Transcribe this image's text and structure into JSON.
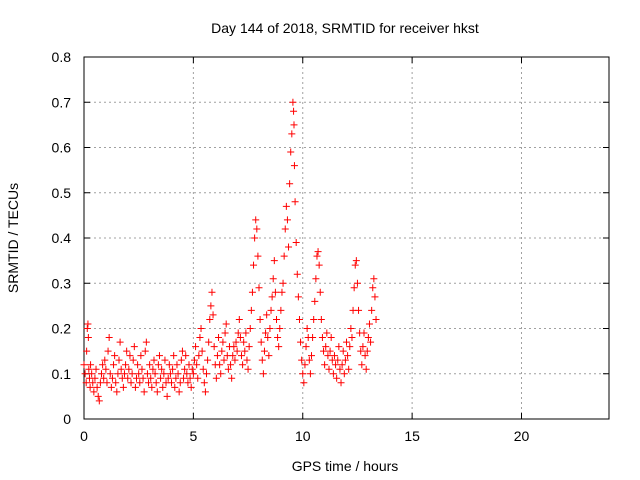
{
  "chart_data": {
    "type": "scatter",
    "title": "Day 144 of 2018, SRMTID for receiver hkst",
    "xlabel": "GPS time / hours",
    "ylabel": "SRMTID / TECUs",
    "xlim": [
      0,
      24
    ],
    "ylim": [
      0,
      0.8
    ],
    "xticks": [
      0,
      5,
      10,
      15,
      20
    ],
    "yticks": [
      0,
      0.1,
      0.2,
      0.3,
      0.4,
      0.5,
      0.6,
      0.7,
      0.8
    ],
    "xtick_labels": [
      "0",
      "5",
      "10",
      "15",
      "20"
    ],
    "ytick_labels": [
      "0",
      "0.1",
      "0.2",
      "0.3",
      "0.4",
      "0.5",
      "0.6",
      "0.7",
      "0.8"
    ],
    "grid": true,
    "marker": "+",
    "color": "#ff0000",
    "series": [
      {
        "name": "hkst",
        "points": [
          [
            0.0,
            0.12
          ],
          [
            0.05,
            0.1
          ],
          [
            0.1,
            0.08
          ],
          [
            0.12,
            0.15
          ],
          [
            0.15,
            0.2
          ],
          [
            0.18,
            0.21
          ],
          [
            0.2,
            0.18
          ],
          [
            0.22,
            0.11
          ],
          [
            0.25,
            0.09
          ],
          [
            0.28,
            0.07
          ],
          [
            0.3,
            0.12
          ],
          [
            0.35,
            0.1
          ],
          [
            0.4,
            0.08
          ],
          [
            0.45,
            0.06
          ],
          [
            0.5,
            0.09
          ],
          [
            0.55,
            0.11
          ],
          [
            0.6,
            0.07
          ],
          [
            0.65,
            0.05
          ],
          [
            0.7,
            0.04
          ],
          [
            0.75,
            0.08
          ],
          [
            0.8,
            0.1
          ],
          [
            0.85,
            0.12
          ],
          [
            0.9,
            0.09
          ],
          [
            0.95,
            0.13
          ],
          [
            1.0,
            0.11
          ],
          [
            1.05,
            0.08
          ],
          [
            1.1,
            0.15
          ],
          [
            1.15,
            0.18
          ],
          [
            1.2,
            0.1
          ],
          [
            1.25,
            0.07
          ],
          [
            1.3,
            0.09
          ],
          [
            1.35,
            0.12
          ],
          [
            1.4,
            0.14
          ],
          [
            1.45,
            0.08
          ],
          [
            1.5,
            0.06
          ],
          [
            1.55,
            0.1
          ],
          [
            1.6,
            0.13
          ],
          [
            1.65,
            0.17
          ],
          [
            1.7,
            0.11
          ],
          [
            1.75,
            0.09
          ],
          [
            1.8,
            0.07
          ],
          [
            1.85,
            0.1
          ],
          [
            1.9,
            0.12
          ],
          [
            1.95,
            0.15
          ],
          [
            2.0,
            0.09
          ],
          [
            2.05,
            0.11
          ],
          [
            2.1,
            0.14
          ],
          [
            2.15,
            0.08
          ],
          [
            2.2,
            0.1
          ],
          [
            2.25,
            0.13
          ],
          [
            2.3,
            0.16
          ],
          [
            2.35,
            0.07
          ],
          [
            2.4,
            0.09
          ],
          [
            2.45,
            0.12
          ],
          [
            2.5,
            0.1
          ],
          [
            2.55,
            0.08
          ],
          [
            2.6,
            0.14
          ],
          [
            2.65,
            0.11
          ],
          [
            2.7,
            0.09
          ],
          [
            2.75,
            0.06
          ],
          [
            2.8,
            0.15
          ],
          [
            2.85,
            0.17
          ],
          [
            2.9,
            0.1
          ],
          [
            2.95,
            0.08
          ],
          [
            3.0,
            0.12
          ],
          [
            3.05,
            0.09
          ],
          [
            3.1,
            0.07
          ],
          [
            3.15,
            0.11
          ],
          [
            3.2,
            0.13
          ],
          [
            3.25,
            0.1
          ],
          [
            3.3,
            0.08
          ],
          [
            3.35,
            0.06
          ],
          [
            3.4,
            0.12
          ],
          [
            3.45,
            0.14
          ],
          [
            3.5,
            0.09
          ],
          [
            3.55,
            0.11
          ],
          [
            3.6,
            0.07
          ],
          [
            3.65,
            0.1
          ],
          [
            3.7,
            0.13
          ],
          [
            3.75,
            0.08
          ],
          [
            3.8,
            0.05
          ],
          [
            3.85,
            0.09
          ],
          [
            3.9,
            0.12
          ],
          [
            3.95,
            0.1
          ],
          [
            4.0,
            0.08
          ],
          [
            4.05,
            0.11
          ],
          [
            4.1,
            0.14
          ],
          [
            4.15,
            0.07
          ],
          [
            4.2,
            0.09
          ],
          [
            4.25,
            0.12
          ],
          [
            4.3,
            0.1
          ],
          [
            4.35,
            0.06
          ],
          [
            4.4,
            0.08
          ],
          [
            4.45,
            0.13
          ],
          [
            4.5,
            0.15
          ],
          [
            4.55,
            0.09
          ],
          [
            4.6,
            0.11
          ],
          [
            4.65,
            0.14
          ],
          [
            4.7,
            0.1
          ],
          [
            4.75,
            0.08
          ],
          [
            4.8,
            0.12
          ],
          [
            4.85,
            0.09
          ],
          [
            4.9,
            0.07
          ],
          [
            4.95,
            0.11
          ],
          [
            5.0,
            0.1
          ],
          [
            5.05,
            0.13
          ],
          [
            5.1,
            0.16
          ],
          [
            5.15,
            0.12
          ],
          [
            5.2,
            0.09
          ],
          [
            5.25,
            0.14
          ],
          [
            5.3,
            0.18
          ],
          [
            5.35,
            0.2
          ],
          [
            5.4,
            0.15
          ],
          [
            5.45,
            0.11
          ],
          [
            5.5,
            0.08
          ],
          [
            5.55,
            0.06
          ],
          [
            5.6,
            0.1
          ],
          [
            5.65,
            0.13
          ],
          [
            5.7,
            0.17
          ],
          [
            5.75,
            0.22
          ],
          [
            5.8,
            0.25
          ],
          [
            5.85,
            0.28
          ],
          [
            5.9,
            0.23
          ],
          [
            5.95,
            0.16
          ],
          [
            6.0,
            0.12
          ],
          [
            6.05,
            0.09
          ],
          [
            6.1,
            0.14
          ],
          [
            6.15,
            0.18
          ],
          [
            6.2,
            0.12
          ],
          [
            6.25,
            0.1
          ],
          [
            6.3,
            0.15
          ],
          [
            6.35,
            0.17
          ],
          [
            6.4,
            0.13
          ],
          [
            6.45,
            0.19
          ],
          [
            6.5,
            0.21
          ],
          [
            6.55,
            0.14
          ],
          [
            6.6,
            0.11
          ],
          [
            6.65,
            0.16
          ],
          [
            6.7,
            0.12
          ],
          [
            6.75,
            0.09
          ],
          [
            6.8,
            0.14
          ],
          [
            6.85,
            0.16
          ],
          [
            6.9,
            0.13
          ],
          [
            6.95,
            0.17
          ],
          [
            7.0,
            0.15
          ],
          [
            7.05,
            0.19
          ],
          [
            7.1,
            0.22
          ],
          [
            7.15,
            0.18
          ],
          [
            7.2,
            0.14
          ],
          [
            7.25,
            0.12
          ],
          [
            7.3,
            0.17
          ],
          [
            7.35,
            0.15
          ],
          [
            7.4,
            0.19
          ],
          [
            7.45,
            0.13
          ],
          [
            7.5,
            0.11
          ],
          [
            7.55,
            0.16
          ],
          [
            7.6,
            0.2
          ],
          [
            7.65,
            0.24
          ],
          [
            7.7,
            0.28
          ],
          [
            7.75,
            0.34
          ],
          [
            7.8,
            0.4
          ],
          [
            7.85,
            0.44
          ],
          [
            7.9,
            0.42
          ],
          [
            7.95,
            0.36
          ],
          [
            8.0,
            0.29
          ],
          [
            8.05,
            0.22
          ],
          [
            8.1,
            0.17
          ],
          [
            8.15,
            0.13
          ],
          [
            8.2,
            0.1
          ],
          [
            8.25,
            0.15
          ],
          [
            8.3,
            0.19
          ],
          [
            8.35,
            0.23
          ],
          [
            8.4,
            0.18
          ],
          [
            8.45,
            0.14
          ],
          [
            8.5,
            0.2
          ],
          [
            8.55,
            0.24
          ],
          [
            8.6,
            0.27
          ],
          [
            8.65,
            0.31
          ],
          [
            8.7,
            0.35
          ],
          [
            8.75,
            0.28
          ],
          [
            8.8,
            0.22
          ],
          [
            8.85,
            0.18
          ],
          [
            8.9,
            0.16
          ],
          [
            8.95,
            0.2
          ],
          [
            9.0,
            0.24
          ],
          [
            9.05,
            0.28
          ],
          [
            9.1,
            0.3
          ],
          [
            9.15,
            0.36
          ],
          [
            9.2,
            0.42
          ],
          [
            9.25,
            0.47
          ],
          [
            9.3,
            0.44
          ],
          [
            9.35,
            0.38
          ],
          [
            9.4,
            0.52
          ],
          [
            9.45,
            0.59
          ],
          [
            9.5,
            0.63
          ],
          [
            9.55,
            0.7
          ],
          [
            9.58,
            0.68
          ],
          [
            9.6,
            0.65
          ],
          [
            9.62,
            0.56
          ],
          [
            9.65,
            0.48
          ],
          [
            9.7,
            0.39
          ],
          [
            9.75,
            0.32
          ],
          [
            9.8,
            0.27
          ],
          [
            9.85,
            0.22
          ],
          [
            9.9,
            0.17
          ],
          [
            9.95,
            0.13
          ],
          [
            10.0,
            0.1
          ],
          [
            10.05,
            0.08
          ],
          [
            10.1,
            0.12
          ],
          [
            10.15,
            0.16
          ],
          [
            10.2,
            0.2
          ],
          [
            10.25,
            0.18
          ],
          [
            10.3,
            0.13
          ],
          [
            10.35,
            0.1
          ],
          [
            10.4,
            0.14
          ],
          [
            10.45,
            0.18
          ],
          [
            10.5,
            0.22
          ],
          [
            10.55,
            0.26
          ],
          [
            10.6,
            0.31
          ],
          [
            10.65,
            0.36
          ],
          [
            10.7,
            0.37
          ],
          [
            10.75,
            0.34
          ],
          [
            10.8,
            0.28
          ],
          [
            10.85,
            0.22
          ],
          [
            10.9,
            0.18
          ],
          [
            10.95,
            0.15
          ],
          [
            11.0,
            0.12
          ],
          [
            11.05,
            0.16
          ],
          [
            11.1,
            0.19
          ],
          [
            11.15,
            0.14
          ],
          [
            11.2,
            0.11
          ],
          [
            11.25,
            0.15
          ],
          [
            11.3,
            0.18
          ],
          [
            11.35,
            0.13
          ],
          [
            11.4,
            0.1
          ],
          [
            11.45,
            0.14
          ],
          [
            11.5,
            0.12
          ],
          [
            11.55,
            0.09
          ],
          [
            11.6,
            0.13
          ],
          [
            11.65,
            0.16
          ],
          [
            11.7,
            0.11
          ],
          [
            11.75,
            0.08
          ],
          [
            11.8,
            0.12
          ],
          [
            11.85,
            0.15
          ],
          [
            11.9,
            0.1
          ],
          [
            11.95,
            0.13
          ],
          [
            12.0,
            0.17
          ],
          [
            12.05,
            0.14
          ],
          [
            12.1,
            0.11
          ],
          [
            12.15,
            0.16
          ],
          [
            12.2,
            0.2
          ],
          [
            12.25,
            0.18
          ],
          [
            12.3,
            0.24
          ],
          [
            12.35,
            0.29
          ],
          [
            12.4,
            0.34
          ],
          [
            12.45,
            0.35
          ],
          [
            12.5,
            0.3
          ],
          [
            12.55,
            0.24
          ],
          [
            12.6,
            0.19
          ],
          [
            12.65,
            0.15
          ],
          [
            12.7,
            0.12
          ],
          [
            12.75,
            0.16
          ],
          [
            12.8,
            0.19
          ],
          [
            12.85,
            0.14
          ],
          [
            12.9,
            0.11
          ],
          [
            12.95,
            0.15
          ],
          [
            13.0,
            0.18
          ],
          [
            13.05,
            0.21
          ],
          [
            13.1,
            0.17
          ],
          [
            13.15,
            0.24
          ],
          [
            13.2,
            0.29
          ],
          [
            13.25,
            0.31
          ],
          [
            13.3,
            0.27
          ],
          [
            13.35,
            0.22
          ]
        ]
      }
    ]
  }
}
